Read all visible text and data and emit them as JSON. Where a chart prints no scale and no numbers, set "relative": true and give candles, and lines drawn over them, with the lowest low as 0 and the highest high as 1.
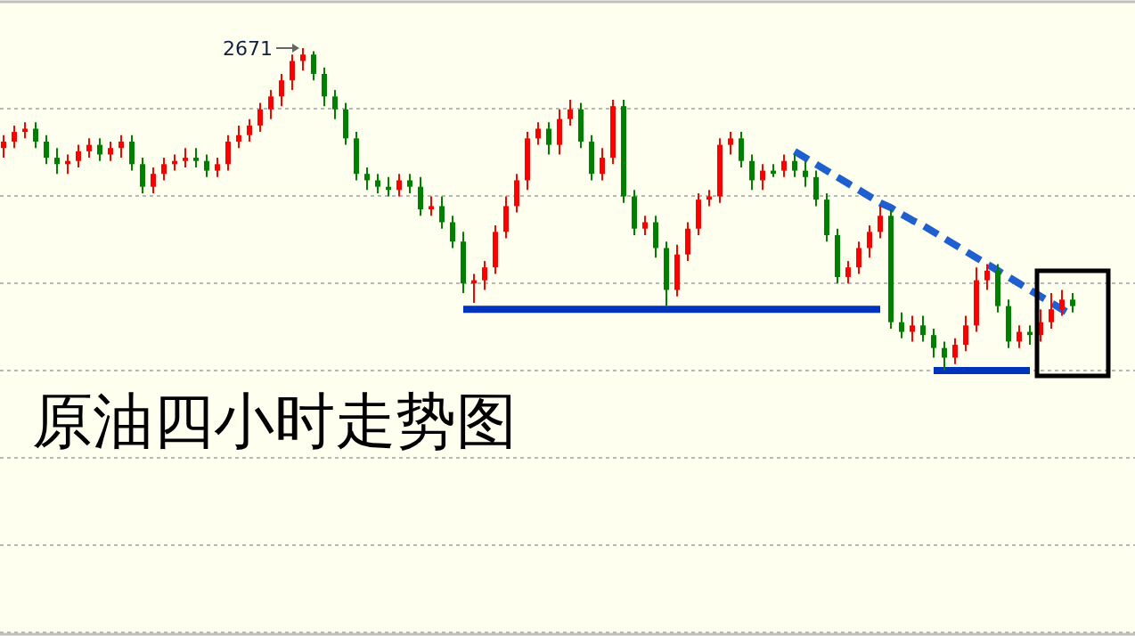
{
  "chart_data": {
    "type": "candlestick",
    "title": "原油四小时走势图",
    "relative": true,
    "grid": true,
    "categories": [
      null,
      null,
      null,
      null,
      null,
      null,
      null,
      null,
      null,
      null,
      null,
      null,
      null,
      null,
      null,
      null,
      null,
      null,
      null,
      null,
      null,
      null,
      null,
      null,
      null,
      null,
      null,
      null,
      null,
      null,
      null,
      null,
      null,
      null,
      null,
      null,
      null,
      null,
      null,
      null,
      null,
      null,
      null,
      null,
      null,
      null,
      null,
      null,
      null,
      null,
      null,
      null,
      null,
      null,
      null,
      null,
      null,
      null,
      null,
      null,
      null,
      null,
      null,
      null,
      null,
      null,
      null,
      null,
      null,
      null,
      null,
      null,
      null,
      null,
      null,
      null,
      null,
      null,
      null,
      null,
      null,
      null,
      null,
      null,
      null,
      null,
      null,
      null,
      null,
      null,
      null,
      null,
      null,
      null,
      null,
      null,
      null,
      null,
      null,
      null,
      null
    ],
    "ohlc": [
      [
        0.69,
        0.73,
        0.66,
        0.71
      ],
      [
        0.71,
        0.76,
        0.69,
        0.74
      ],
      [
        0.74,
        0.77,
        0.72,
        0.75
      ],
      [
        0.75,
        0.77,
        0.69,
        0.71
      ],
      [
        0.71,
        0.73,
        0.64,
        0.66
      ],
      [
        0.66,
        0.69,
        0.61,
        0.64
      ],
      [
        0.64,
        0.67,
        0.61,
        0.65
      ],
      [
        0.65,
        0.7,
        0.63,
        0.68
      ],
      [
        0.68,
        0.72,
        0.66,
        0.7
      ],
      [
        0.7,
        0.72,
        0.65,
        0.67
      ],
      [
        0.67,
        0.71,
        0.65,
        0.69
      ],
      [
        0.69,
        0.73,
        0.66,
        0.71
      ],
      [
        0.71,
        0.73,
        0.62,
        0.64
      ],
      [
        0.64,
        0.66,
        0.55,
        0.57
      ],
      [
        0.57,
        0.63,
        0.55,
        0.61
      ],
      [
        0.61,
        0.66,
        0.59,
        0.64
      ],
      [
        0.64,
        0.67,
        0.62,
        0.65
      ],
      [
        0.65,
        0.69,
        0.63,
        0.66
      ],
      [
        0.66,
        0.69,
        0.63,
        0.65
      ],
      [
        0.65,
        0.67,
        0.6,
        0.62
      ],
      [
        0.62,
        0.66,
        0.6,
        0.64
      ],
      [
        0.64,
        0.73,
        0.62,
        0.71
      ],
      [
        0.71,
        0.76,
        0.69,
        0.73
      ],
      [
        0.73,
        0.78,
        0.71,
        0.76
      ],
      [
        0.76,
        0.83,
        0.74,
        0.81
      ],
      [
        0.81,
        0.87,
        0.78,
        0.85
      ],
      [
        0.85,
        0.92,
        0.82,
        0.9
      ],
      [
        0.9,
        0.98,
        0.87,
        0.96
      ],
      [
        0.96,
        1,
        0.93,
        0.98
      ],
      [
        0.98,
        0.99,
        0.9,
        0.92
      ],
      [
        0.92,
        0.94,
        0.82,
        0.85
      ],
      [
        0.85,
        0.87,
        0.78,
        0.81
      ],
      [
        0.81,
        0.83,
        0.7,
        0.72
      ],
      [
        0.72,
        0.74,
        0.59,
        0.61
      ],
      [
        0.61,
        0.63,
        0.56,
        0.59
      ],
      [
        0.59,
        0.61,
        0.55,
        0.57
      ],
      [
        0.57,
        0.6,
        0.54,
        0.56
      ],
      [
        0.56,
        0.61,
        0.54,
        0.59
      ],
      [
        0.59,
        0.61,
        0.55,
        0.57
      ],
      [
        0.57,
        0.6,
        0.48,
        0.5
      ],
      [
        0.5,
        0.54,
        0.48,
        0.51
      ],
      [
        0.51,
        0.54,
        0.44,
        0.46
      ],
      [
        0.46,
        0.48,
        0.38,
        0.4
      ],
      [
        0.4,
        0.43,
        0.24,
        0.27
      ],
      [
        0.27,
        0.3,
        0.21,
        0.28
      ],
      [
        0.28,
        0.34,
        0.25,
        0.32
      ],
      [
        0.32,
        0.45,
        0.3,
        0.43
      ],
      [
        0.43,
        0.54,
        0.41,
        0.51
      ],
      [
        0.51,
        0.61,
        0.49,
        0.59
      ],
      [
        0.59,
        0.74,
        0.56,
        0.72
      ],
      [
        0.72,
        0.77,
        0.7,
        0.75
      ],
      [
        0.75,
        0.77,
        0.67,
        0.7
      ],
      [
        0.7,
        0.81,
        0.67,
        0.78
      ],
      [
        0.78,
        0.84,
        0.76,
        0.81
      ],
      [
        0.81,
        0.83,
        0.69,
        0.71
      ],
      [
        0.71,
        0.73,
        0.59,
        0.61
      ],
      [
        0.61,
        0.69,
        0.59,
        0.66
      ],
      [
        0.66,
        0.84,
        0.64,
        0.82
      ],
      [
        0.82,
        0.84,
        0.52,
        0.54
      ],
      [
        0.54,
        0.56,
        0.42,
        0.44
      ],
      [
        0.44,
        0.48,
        0.42,
        0.46
      ],
      [
        0.46,
        0.48,
        0.35,
        0.38
      ],
      [
        0.38,
        0.4,
        0.2,
        0.25
      ],
      [
        0.25,
        0.39,
        0.23,
        0.36
      ],
      [
        0.36,
        0.46,
        0.34,
        0.44
      ],
      [
        0.44,
        0.55,
        0.42,
        0.53
      ],
      [
        0.53,
        0.56,
        0.51,
        0.54
      ],
      [
        0.54,
        0.72,
        0.52,
        0.7
      ],
      [
        0.7,
        0.74,
        0.67,
        0.72
      ],
      [
        0.72,
        0.74,
        0.63,
        0.65
      ],
      [
        0.65,
        0.67,
        0.56,
        0.59
      ],
      [
        0.59,
        0.64,
        0.56,
        0.62
      ],
      [
        0.62,
        0.64,
        0.6,
        0.61
      ],
      [
        0.62,
        0.67,
        0.6,
        0.65
      ],
      [
        0.65,
        0.67,
        0.6,
        0.62
      ],
      [
        0.62,
        0.65,
        0.57,
        0.6
      ],
      [
        0.6,
        0.62,
        0.51,
        0.53
      ],
      [
        0.53,
        0.55,
        0.4,
        0.42
      ],
      [
        0.42,
        0.44,
        0.27,
        0.29
      ],
      [
        0.29,
        0.34,
        0.27,
        0.32
      ],
      [
        0.32,
        0.4,
        0.3,
        0.38
      ],
      [
        0.38,
        0.45,
        0.35,
        0.43
      ],
      [
        0.43,
        0.51,
        0.41,
        0.48
      ],
      [
        0.48,
        0.5,
        0.13,
        0.15
      ],
      [
        0.15,
        0.18,
        0.1,
        0.12
      ],
      [
        0.12,
        0.17,
        0.09,
        0.14
      ],
      [
        0.14,
        0.17,
        0.09,
        0.11
      ],
      [
        0.11,
        0.13,
        0.04,
        0.07
      ],
      [
        0.07,
        0.09,
        0,
        0.04
      ],
      [
        0.04,
        0.1,
        0.02,
        0.08
      ],
      [
        0.08,
        0.17,
        0.06,
        0.14
      ],
      [
        0.14,
        0.32,
        0.12,
        0.28
      ],
      [
        0.28,
        0.33,
        0.25,
        0.31
      ],
      [
        0.31,
        0.33,
        0.18,
        0.2
      ],
      [
        0.2,
        0.22,
        0.07,
        0.09
      ],
      [
        0.09,
        0.14,
        0.07,
        0.12
      ],
      [
        0.12,
        0.14,
        0.08,
        0.11
      ],
      [
        0.11,
        0.19,
        0.09,
        0.15
      ],
      [
        0.15,
        0.24,
        0.13,
        0.19
      ],
      [
        0.19,
        0.25,
        0.17,
        0.22
      ],
      [
        0.22,
        0.24,
        0.18,
        0.2
      ]
    ],
    "series": [
      {
        "type": "line",
        "color": "#0033bb",
        "line_style": "solid",
        "values": [
          null,
          null,
          null,
          null,
          null,
          null,
          null,
          null,
          null,
          null,
          null,
          null,
          null,
          null,
          null,
          null,
          null,
          null,
          null,
          null,
          null,
          null,
          null,
          null,
          null,
          null,
          null,
          null,
          null,
          null,
          null,
          null,
          null,
          null,
          null,
          null,
          null,
          null,
          null,
          null,
          null,
          null,
          null,
          0.19,
          0.19,
          0.19,
          0.19,
          0.19,
          0.19,
          0.19,
          0.19,
          0.19,
          0.19,
          0.19,
          0.19,
          0.19,
          0.19,
          0.19,
          0.19,
          0.19,
          0.19,
          0.19,
          0.19,
          0.19,
          0.19,
          0.19,
          0.19,
          0.19,
          0.19,
          0.19,
          0.19,
          0.19,
          0.19,
          0.19,
          0.19,
          0.19,
          0.19,
          0.19,
          0.19,
          0.19,
          0.19,
          0.19,
          0.19,
          null,
          null,
          null,
          null,
          null,
          null,
          null,
          null,
          null,
          null,
          null,
          null,
          null,
          null,
          null,
          null,
          null,
          null
        ]
      },
      {
        "type": "line",
        "color": "#0033bb",
        "line_style": "solid",
        "values": [
          null,
          null,
          null,
          null,
          null,
          null,
          null,
          null,
          null,
          null,
          null,
          null,
          null,
          null,
          null,
          null,
          null,
          null,
          null,
          null,
          null,
          null,
          null,
          null,
          null,
          null,
          null,
          null,
          null,
          null,
          null,
          null,
          null,
          null,
          null,
          null,
          null,
          null,
          null,
          null,
          null,
          null,
          null,
          null,
          null,
          null,
          null,
          null,
          null,
          null,
          null,
          null,
          null,
          null,
          null,
          null,
          null,
          null,
          null,
          null,
          null,
          null,
          null,
          null,
          null,
          null,
          null,
          null,
          null,
          null,
          null,
          null,
          null,
          null,
          null,
          null,
          null,
          null,
          null,
          null,
          null,
          null,
          null,
          null,
          null,
          null,
          null,
          0,
          0,
          0,
          0,
          0,
          0,
          0,
          0,
          0,
          0,
          null,
          null,
          null,
          null
        ]
      },
      {
        "type": "line",
        "color": "#1f5fd0",
        "line_style": "dashed",
        "values": [
          null,
          null,
          null,
          null,
          null,
          null,
          null,
          null,
          null,
          null,
          null,
          null,
          null,
          null,
          null,
          null,
          null,
          null,
          null,
          null,
          null,
          null,
          null,
          null,
          null,
          null,
          null,
          null,
          null,
          null,
          null,
          null,
          null,
          null,
          null,
          null,
          null,
          null,
          null,
          null,
          null,
          null,
          null,
          null,
          null,
          null,
          null,
          null,
          null,
          null,
          null,
          null,
          null,
          null,
          null,
          null,
          null,
          null,
          null,
          null,
          null,
          null,
          null,
          null,
          null,
          null,
          null,
          null,
          null,
          null,
          null,
          null,
          null,
          null,
          0.68,
          0.66,
          0.64,
          0.62,
          0.6,
          0.58,
          0.56,
          0.54,
          0.52,
          0.505,
          0.485,
          0.466,
          0.45,
          0.43,
          0.41,
          0.39,
          0.37,
          0.35,
          0.33,
          0.31,
          0.29,
          0.27,
          0.25,
          0.23,
          0.21,
          0.19,
          0.17
        ]
      }
    ],
    "annotations": [
      "2671"
    ]
  }
}
